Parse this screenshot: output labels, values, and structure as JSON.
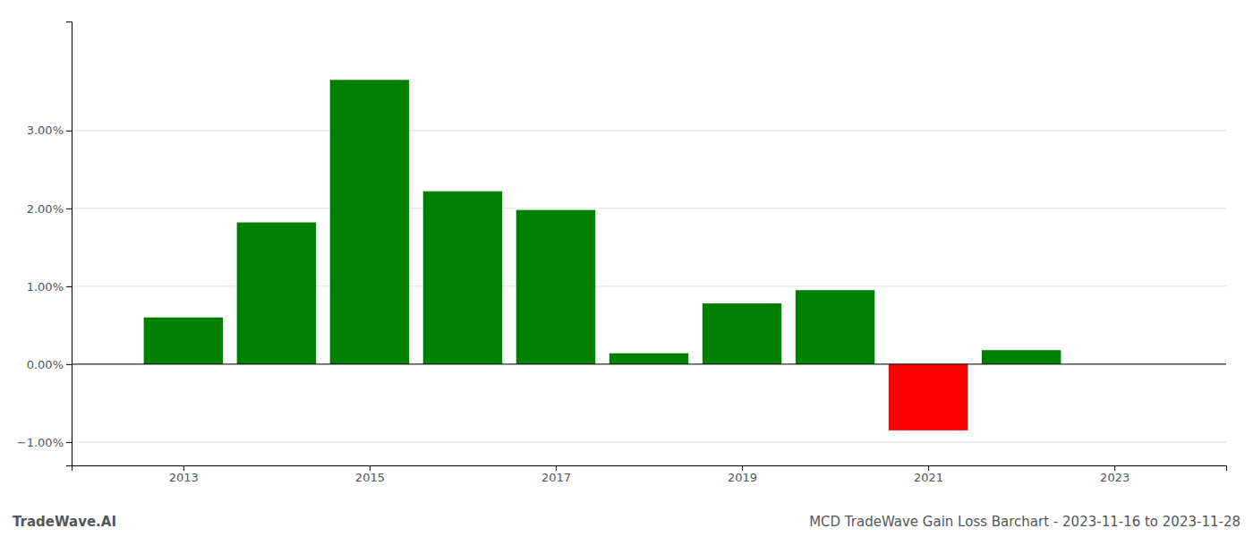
{
  "chart_data": {
    "type": "bar",
    "x": [
      2013,
      2014,
      2015,
      2016,
      2017,
      2018,
      2019,
      2020,
      2021,
      2022
    ],
    "values": [
      0.006,
      0.0182,
      0.0365,
      0.0222,
      0.0198,
      0.0014,
      0.0078,
      0.0095,
      -0.0085,
      0.0018
    ],
    "colors": [
      "#008000",
      "#008000",
      "#008000",
      "#008000",
      "#008000",
      "#008000",
      "#008000",
      "#008000",
      "#ff0000",
      "#008000"
    ],
    "xlim": [
      2011.8,
      2024.2
    ],
    "xticks": [
      2013,
      2015,
      2017,
      2019,
      2021,
      2023
    ],
    "ylim": [
      -0.013,
      0.044
    ],
    "yticks": [
      {
        "value": -0.01,
        "label": "−1.00%"
      },
      {
        "value": 0.0,
        "label": "0.00%"
      },
      {
        "value": 0.01,
        "label": "1.00%"
      },
      {
        "value": 0.02,
        "label": "2.00%"
      },
      {
        "value": 0.03,
        "label": "3.00%"
      }
    ],
    "grid": true,
    "annotations": [
      "TradeWave.AI",
      "MCD TradeWave Gain Loss Barchart - 2023-11-16 to 2023-11-28"
    ]
  }
}
